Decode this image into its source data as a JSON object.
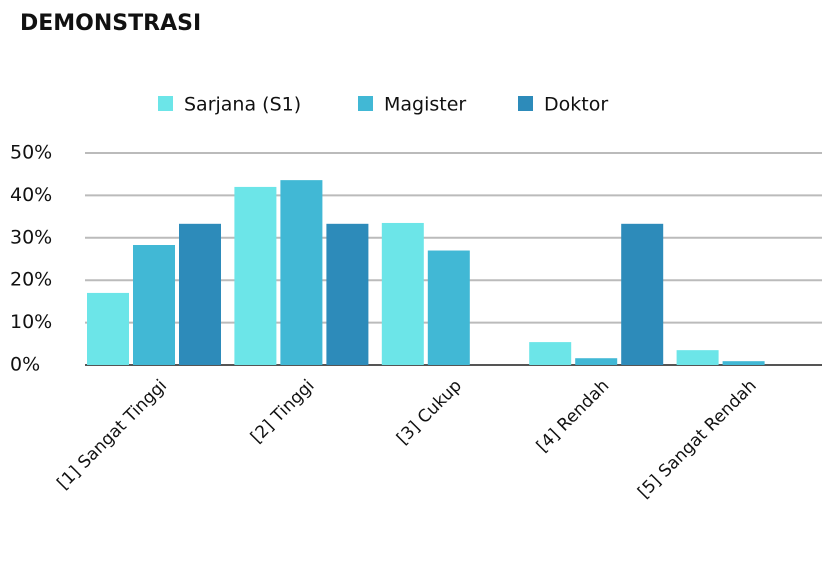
{
  "chart_data": {
    "type": "bar",
    "title": "DEMONSTRASI",
    "categories": [
      "[1] Sangat Tinggi",
      "[2] Tinggi",
      "[3] Cukup",
      "[4] Rendah",
      "[5] Sangat Rendah"
    ],
    "series": [
      {
        "name": "Sarjana (S1)",
        "color": "#6ce5e8",
        "values": [
          17,
          42,
          33.5,
          5.4,
          3.5
        ]
      },
      {
        "name": "Magister",
        "color": "#41b8d5",
        "values": [
          28.3,
          43.6,
          27,
          1.6,
          0.9
        ]
      },
      {
        "name": "Doktor",
        "color": "#2d8bba",
        "values": [
          33.3,
          33.3,
          0,
          33.3,
          0
        ]
      }
    ],
    "ylim": [
      0,
      50
    ],
    "yticks": [
      {
        "value": 0,
        "label": "0%"
      },
      {
        "value": 10,
        "label": "10%"
      },
      {
        "value": 20,
        "label": "20%"
      },
      {
        "value": 30,
        "label": "30%"
      },
      {
        "value": 40,
        "label": "40%"
      },
      {
        "value": 50,
        "label": "50%"
      }
    ],
    "grid": true,
    "legend": "top"
  }
}
